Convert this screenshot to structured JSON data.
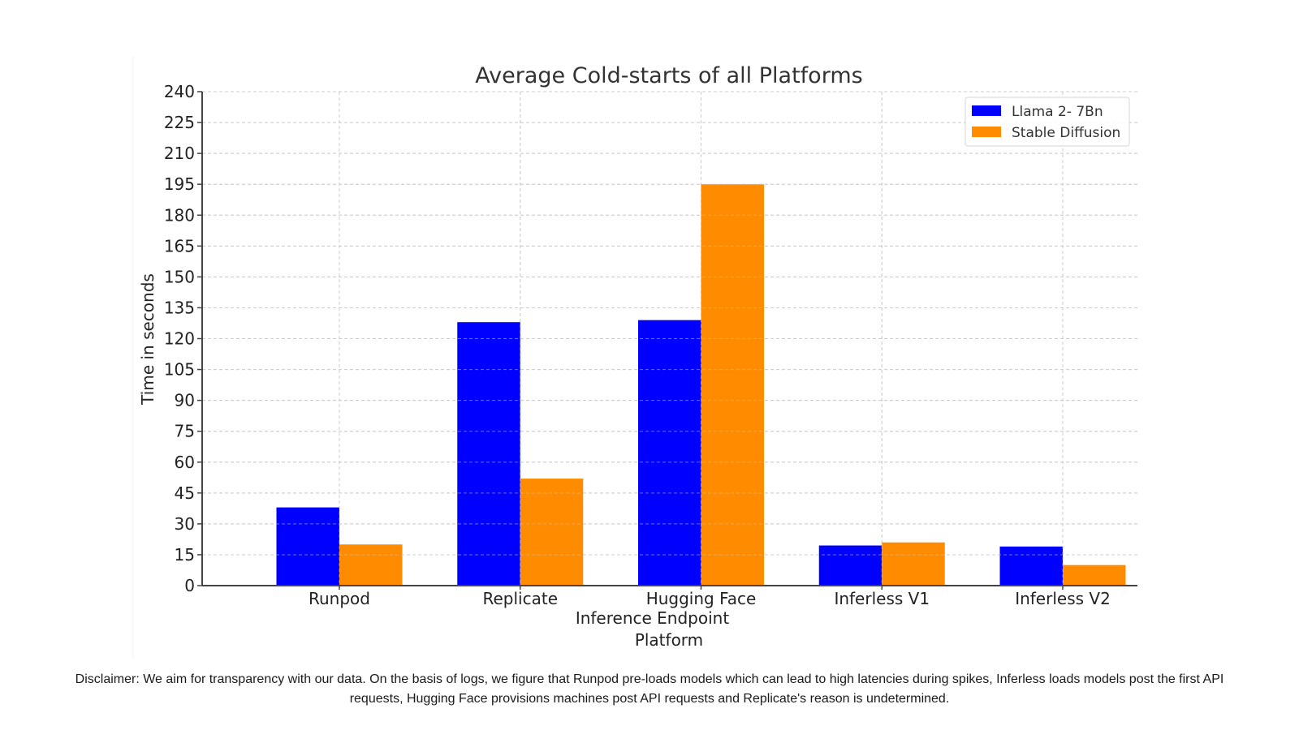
{
  "chart_data": {
    "type": "bar",
    "title": "Average Cold-starts of all Platforms",
    "xlabel": "Platform",
    "ylabel": "Time in seconds",
    "categories": [
      "Runpod",
      "Replicate",
      "Hugging Face\nInference Endpoint",
      "Inferless V1",
      "Inferless V2"
    ],
    "series": [
      {
        "name": "Llama 2- 7Bn",
        "color": "#0000ff",
        "values": [
          38,
          128,
          129,
          19.5,
          19
        ]
      },
      {
        "name": "Stable Diffusion",
        "color": "#ff8c00",
        "values": [
          20,
          52,
          195,
          21,
          10
        ]
      }
    ],
    "ylim": [
      0,
      240
    ],
    "yticks": [
      0,
      15,
      30,
      45,
      60,
      75,
      90,
      105,
      120,
      135,
      150,
      165,
      180,
      195,
      210,
      225,
      240
    ],
    "grid": true,
    "legend_position": "upper right"
  },
  "disclaimer": {
    "line1": "Disclaimer: We aim for transparency with our data. On the basis of logs, we figure that Runpod pre-loads models which can lead to high latencies during spikes, Inferless loads models post the first API",
    "line2": "requests, Hugging Face provisions machines post API requests and Replicate's reason is undetermined."
  }
}
